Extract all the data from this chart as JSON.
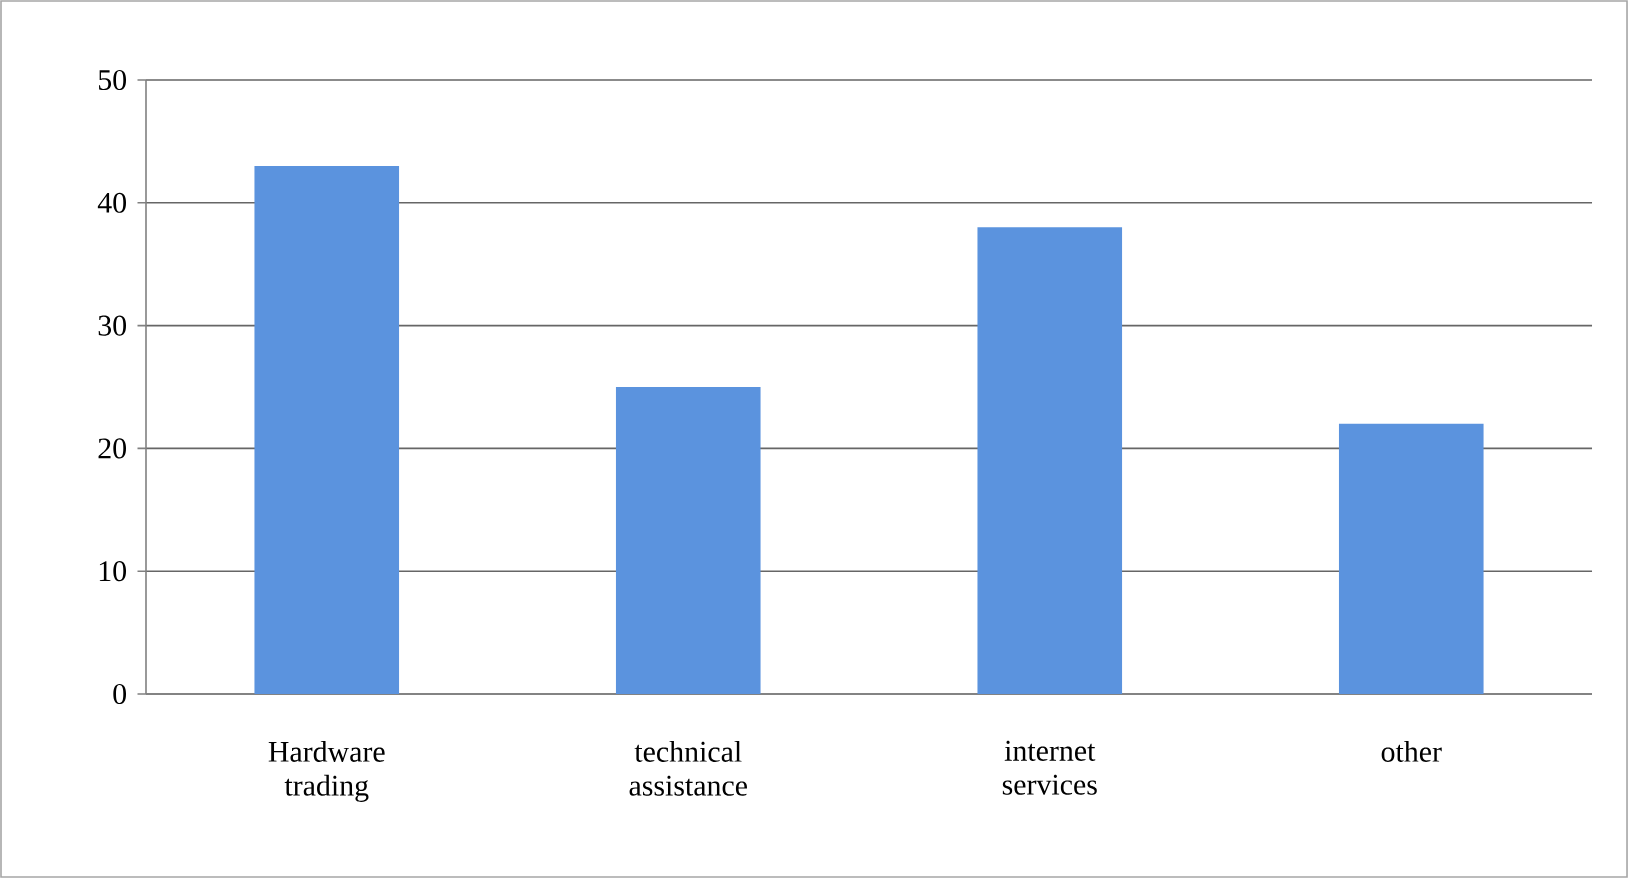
{
  "chart_data": {
    "type": "bar",
    "categories": [
      "Hardware trading",
      "technical assistance",
      "internet services",
      "other"
    ],
    "values": [
      43,
      25,
      38,
      22
    ],
    "color": "#5b93de",
    "ylim": [
      0,
      50
    ],
    "yticks": [
      0,
      10,
      20,
      30,
      40,
      50
    ],
    "grid": "y"
  }
}
